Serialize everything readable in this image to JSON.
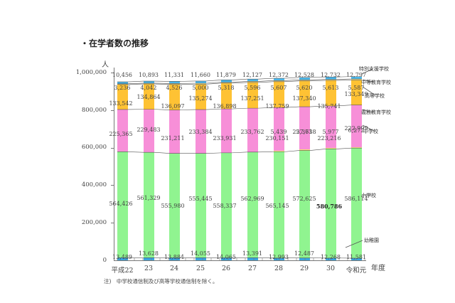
{
  "title": "・在学者数の推移",
  "unit_label": "人",
  "x_unit_label": "年度",
  "note": "注)　中学校通信制及び高等学校通信制を除く。",
  "colors": {
    "kindergarten": "#3aa6e0",
    "elementary": "#90f490",
    "compulsory": "#f7e27a",
    "junior_high": "#f78fd8",
    "secondary": "#fbe084",
    "high_school": "#fec234",
    "special_needs": "#4bb8ec"
  },
  "yticks": [
    "1,000,000",
    "800,000",
    "600,000",
    "400,000",
    "200,000",
    "0"
  ],
  "legend": {
    "special_needs": "特別支援学校",
    "secondary": "中等教育学校",
    "high_school": "高等学校",
    "compulsory": "義務教育学校",
    "junior_high": "中学校",
    "elementary": "小学校",
    "kindergarten": "幼稚園"
  },
  "chart_data": {
    "type": "bar",
    "stacked": true,
    "title": "・在学者数の推移",
    "xlabel": "年度",
    "ylabel": "人",
    "ylim": [
      0,
      1000000
    ],
    "categories": [
      "平成22",
      "23",
      "24",
      "25",
      "26",
      "27",
      "28",
      "29",
      "30",
      "令和元"
    ],
    "series": [
      {
        "name": "幼稚園",
        "values": [
          13489,
          13628,
          13884,
          14055,
          14065,
          13391,
          12993,
          12487,
          12268,
          11581
        ],
        "labels": [
          "13,489",
          "13,628",
          "13,884",
          "14,055",
          "14,065",
          "13,391",
          "12,993",
          "12,487",
          "12,268",
          "11,581"
        ]
      },
      {
        "name": "小学校",
        "values": [
          564426,
          561329,
          555980,
          555445,
          558337,
          562969,
          565145,
          572625,
          580786,
          586114
        ],
        "labels": [
          "564,426",
          "561,329",
          "555,980",
          "555,445",
          "558,337",
          "562,969",
          "565,145",
          "572,625",
          "580,786",
          "586,114"
        ]
      },
      {
        "name": "義務教育学校",
        "values": [
          0,
          0,
          0,
          0,
          0,
          0,
          5439,
          5373,
          5977,
          6272
        ],
        "labels": [
          "",
          "",
          "",
          "",
          "",
          "",
          "5,439",
          "5,373",
          "5,977",
          "6,272"
        ]
      },
      {
        "name": "中学校",
        "values": [
          225365,
          229483,
          231211,
          233384,
          233931,
          233762,
          230151,
          227618,
          223216,
          222999
        ],
        "labels": [
          "225,365",
          "229,483",
          "231,211",
          "233,384",
          "233,931",
          "233,762",
          "230,151",
          "227,618",
          "223,216",
          "222,999"
        ]
      },
      {
        "name": "高等学校",
        "values": [
          133542,
          134864,
          136097,
          135274,
          136898,
          137251,
          137759,
          137340,
          135741,
          133349
        ],
        "labels": [
          "133,542",
          "134,864",
          "136,097",
          "135,274",
          "136,898",
          "137,251",
          "137,759",
          "137,340",
          "135,741",
          "133,349"
        ]
      },
      {
        "name": "中等教育学校",
        "values": [
          3236,
          4042,
          4526,
          5000,
          5318,
          5596,
          5607,
          5620,
          5613,
          5587
        ],
        "labels": [
          "3,236",
          "4,042",
          "4,526",
          "5,000",
          "5,318",
          "5,596",
          "5,607",
          "5,620",
          "5,613",
          "5,587"
        ]
      },
      {
        "name": "特別支援学校",
        "values": [
          10456,
          10893,
          11331,
          11660,
          11879,
          12127,
          12372,
          12528,
          12732,
          12797
        ],
        "labels": [
          "10,456",
          "10,893",
          "11,331",
          "11,660",
          "11,879",
          "12,127",
          "12,372",
          "12,528",
          "12,732",
          "12,797"
        ]
      }
    ],
    "grid": false,
    "legend_position": "right (leader lines)"
  }
}
